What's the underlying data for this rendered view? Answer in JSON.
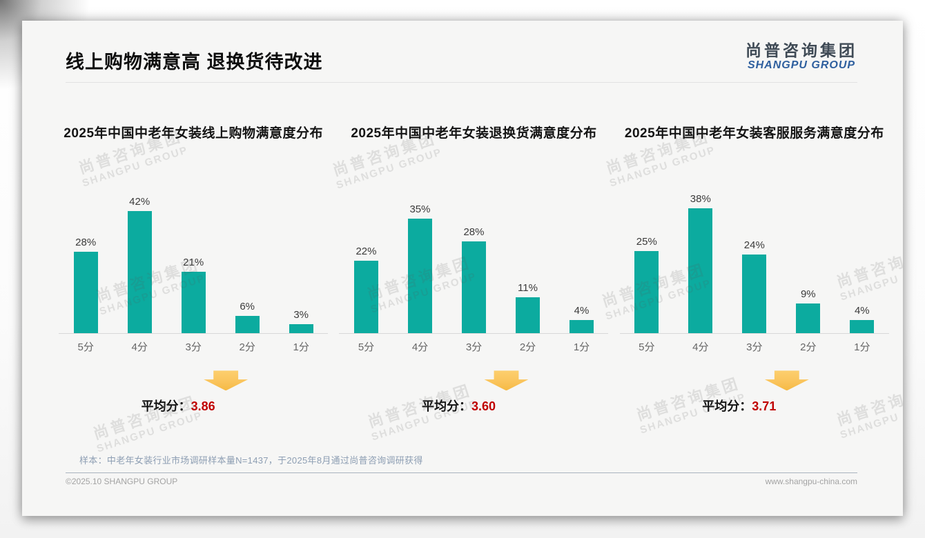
{
  "slide": {
    "title": "线上购物满意高 退换货待改进",
    "logo": {
      "cn": "尚普咨询集团",
      "en": "SHANGPU GROUP"
    },
    "watermark": {
      "cn": "尚普咨询集团",
      "en": "SHANGPU GROUP"
    },
    "footnote": "样本：中老年女装行业市场调研样本量N=1437，于2025年8月通过尚普咨询调研获得",
    "footer": {
      "left": "©2025.10 SHANGPU GROUP",
      "right": "www.shangpu-china.com"
    }
  },
  "colors": {
    "bar_teal": "#0cab9f",
    "average_red": "#c00000",
    "arrow_yellow": "#fac45c",
    "logo_blue": "#2e5f9e",
    "logo_gray": "#3f4a55"
  },
  "chart_data": [
    {
      "type": "bar",
      "title": "2025年中国中老年女装线上购物满意度分布",
      "categories": [
        "5分",
        "4分",
        "3分",
        "2分",
        "1分"
      ],
      "values": [
        28,
        42,
        21,
        6,
        3
      ],
      "value_labels": [
        "28%",
        "42%",
        "21%",
        "6%",
        "3%"
      ],
      "ylim": [
        0,
        45
      ],
      "grid": false,
      "legend": "none",
      "average_label": "平均分：",
      "average_value": "3.86"
    },
    {
      "type": "bar",
      "title": "2025年中国中老年女装退换货满意度分布",
      "categories": [
        "5分",
        "4分",
        "3分",
        "2分",
        "1分"
      ],
      "values": [
        22,
        35,
        28,
        11,
        4
      ],
      "value_labels": [
        "22%",
        "35%",
        "28%",
        "11%",
        "4%"
      ],
      "ylim": [
        0,
        40
      ],
      "grid": false,
      "legend": "none",
      "average_label": "平均分：",
      "average_value": "3.60"
    },
    {
      "type": "bar",
      "title": "2025年中国中老年女装客服服务满意度分布",
      "categories": [
        "5分",
        "4分",
        "3分",
        "2分",
        "1分"
      ],
      "values": [
        25,
        38,
        24,
        9,
        4
      ],
      "value_labels": [
        "25%",
        "38%",
        "24%",
        "9%",
        "4%"
      ],
      "ylim": [
        0,
        40
      ],
      "grid": false,
      "legend": "none",
      "average_label": "平均分：",
      "average_value": "3.71"
    }
  ]
}
